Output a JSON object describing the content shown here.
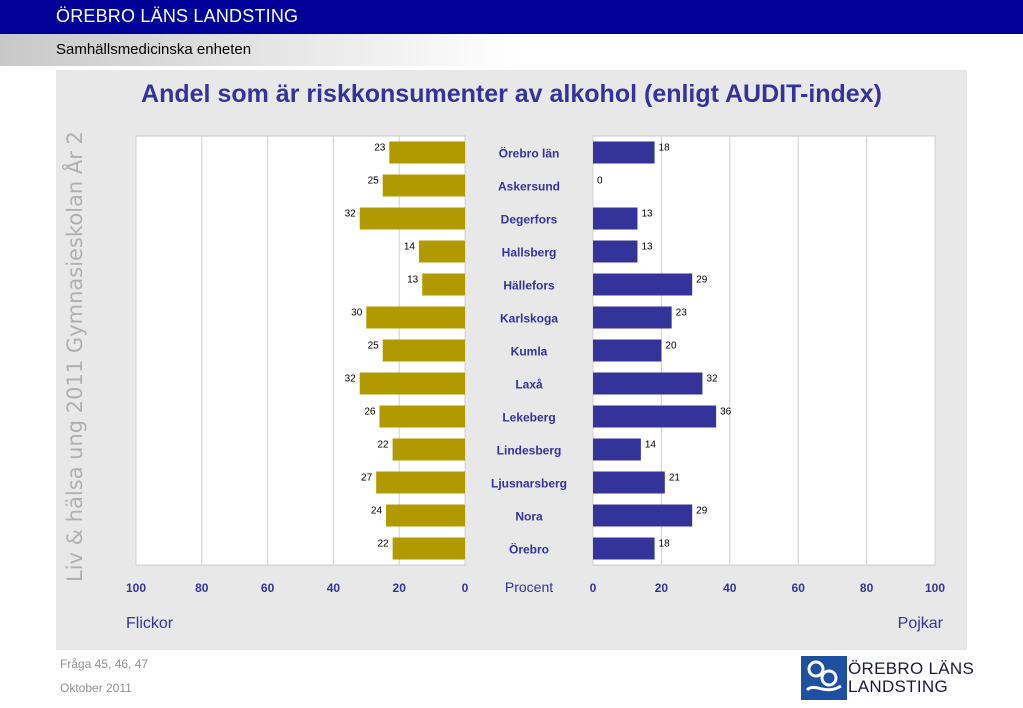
{
  "header": {
    "title": "ÖREBRO LÄNS LANDSTING",
    "subtitle": "Samhällsmedicinska enheten"
  },
  "side_text": "Liv & hälsa ung 2011 Gymnasieskolan År 2",
  "footer": {
    "question": "Fråga 45, 46, 47",
    "date": "Oktober 2011"
  },
  "logo": {
    "line1": "ÖREBRO LÄNS",
    "line2": "LANDSTING"
  },
  "colors": {
    "header_bg": "#000099",
    "girls": "#b09a00",
    "boys": "#333399",
    "text_blue": "#33339a"
  },
  "chart_data": {
    "type": "bar",
    "title": "Andel som är riskkonsumenter av alkohol (enligt AUDIT-index)",
    "categories": [
      "Örebro län",
      "Askersund",
      "Degerfors",
      "Hallsberg",
      "Hällefors",
      "Karlskoga",
      "Kumla",
      "Laxå",
      "Lekeberg",
      "Lindesberg",
      "Ljusnarsberg",
      "Nora",
      "Örebro"
    ],
    "series": [
      {
        "name": "Flickor",
        "values": [
          23,
          25,
          32,
          14,
          13,
          30,
          25,
          32,
          26,
          22,
          27,
          24,
          22
        ]
      },
      {
        "name": "Pojkar",
        "values": [
          18,
          0,
          13,
          13,
          29,
          23,
          20,
          32,
          36,
          14,
          21,
          29,
          18
        ]
      }
    ],
    "xlabel": "Procent",
    "xlim": [
      0,
      100
    ],
    "xticks": [
      0,
      20,
      40,
      60,
      80,
      100
    ],
    "grid": true,
    "data_labels": true
  }
}
